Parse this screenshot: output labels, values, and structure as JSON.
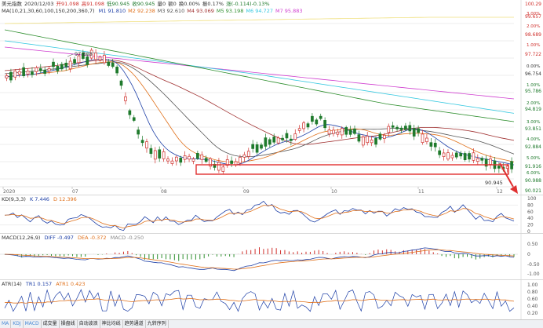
{
  "main": {
    "row1": [
      "美元指数",
      "2020/12/03",
      "开91.098",
      "高91.098",
      "低90.945",
      "收90.945",
      "量0",
      "额0",
      "换0.00%",
      "振0.17%",
      "涨(-0.114)-0.13%"
    ],
    "ma_label": "MA(10,21,30,60,100,150,200,360,7)",
    "ma_items": [
      {
        "text": "M1 91.810",
        "color": "#1c3ea6"
      },
      {
        "text": "M2 92.238",
        "color": "#e0701a"
      },
      {
        "text": "M3 92.610",
        "color": "#555555"
      },
      {
        "text": "M4 93.069",
        "color": "#a03030"
      },
      {
        "text": "M5 93.198",
        "color": "#2f8f2f"
      },
      {
        "text": "M6 94.727",
        "color": "#35c8e0"
      },
      {
        "text": "M7 95.883",
        "color": "#d040d0"
      }
    ],
    "price_scale": [
      "100.29",
      "99.657",
      "98.689",
      "97.722",
      "96.754",
      "95.786",
      "94.819",
      "93.851",
      "92.884",
      "91.916",
      "90.988",
      "90.021"
    ],
    "pct_scale": [
      "3.00%",
      "2.00%",
      "1.00%",
      "0.00%",
      "1.00%",
      "2.00%",
      "3.00%",
      "4.00%",
      "5.00%",
      "6.00%"
    ],
    "annot_high": "97.808",
    "annot_low": "90.945",
    "months": [
      "2020",
      "07",
      "08",
      "09",
      "10",
      "11",
      "12"
    ],
    "colors": {
      "up": "#d0312d",
      "down": "#1f7a2c",
      "box": "#e03030"
    }
  },
  "kdj": {
    "label": "KD(9,3,3)",
    "k": "K 7.446",
    "d": "D 12.396",
    "scale": [
      "100",
      "80",
      "60",
      "40",
      "20",
      "0"
    ]
  },
  "macd": {
    "label": "MACD(12,26,9)",
    "diff": "DIFF -0.497",
    "dea": "DEA -0.372",
    "macd": "MACD -0.250",
    "scale": [
      "0.50",
      "0",
      "-0.50",
      "-1.00"
    ]
  },
  "atr": {
    "label": "ATR(14)",
    "tr1": "TR1 0.157",
    "atr1": "ATR1 0.423",
    "scale": [
      "1.00",
      "0.80",
      "0.60",
      "0.40",
      "0.20"
    ]
  },
  "tabs": [
    "MA",
    "KDJ",
    "MACD",
    "成交量",
    "操盘线",
    "自动波浪",
    "神比均线",
    "趋势通道",
    "九转序列"
  ],
  "corner_label": "指"
}
